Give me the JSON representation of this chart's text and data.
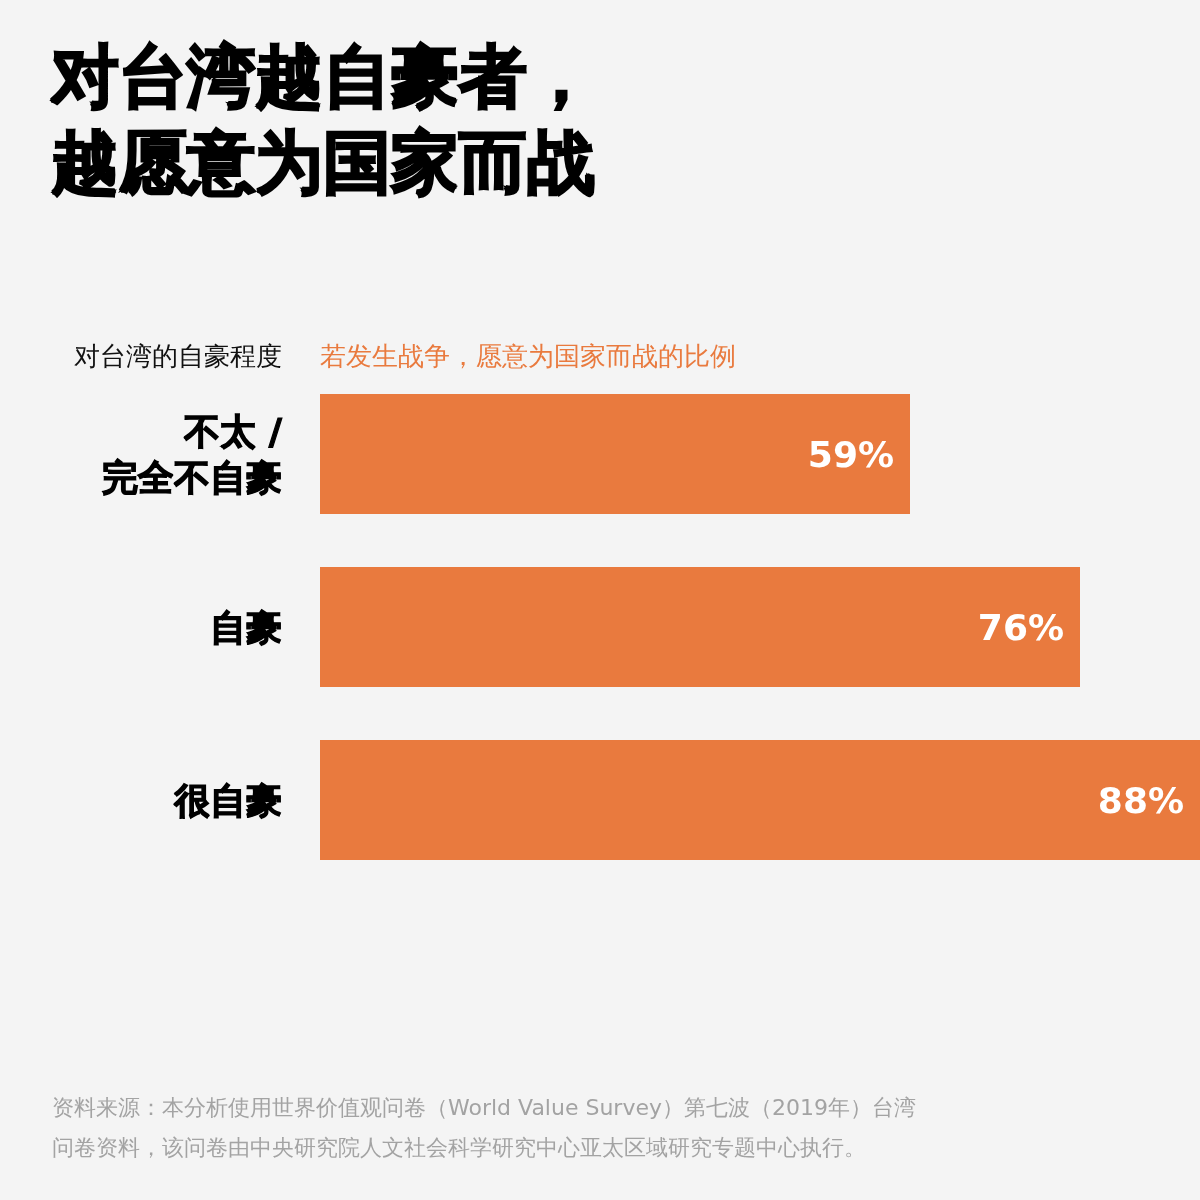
{
  "chart_data": {
    "type": "bar",
    "orientation": "horizontal",
    "title": "对台湾越自豪者，越愿意为国家而战",
    "ylabel": "对台湾的自豪程度",
    "xlabel": "若发生战争，愿意为国家而战的比例",
    "categories": [
      "不太 /\n完全不自豪",
      "自豪",
      "很自豪"
    ],
    "values": [
      59,
      76,
      88
    ],
    "value_labels": [
      "59%",
      "76%",
      "88%"
    ],
    "color": "#e97a3e",
    "xlim": [
      0,
      88
    ],
    "tick_labels": "y",
    "annotations": [
      "资料来源：本分析使用世界价值观问卷（World Value Survey）第七波（2019年）台湾问卷资料，该问卷由中央研究院人文社会科学研究中心亚太区域研究专题中心执行。"
    ]
  }
}
